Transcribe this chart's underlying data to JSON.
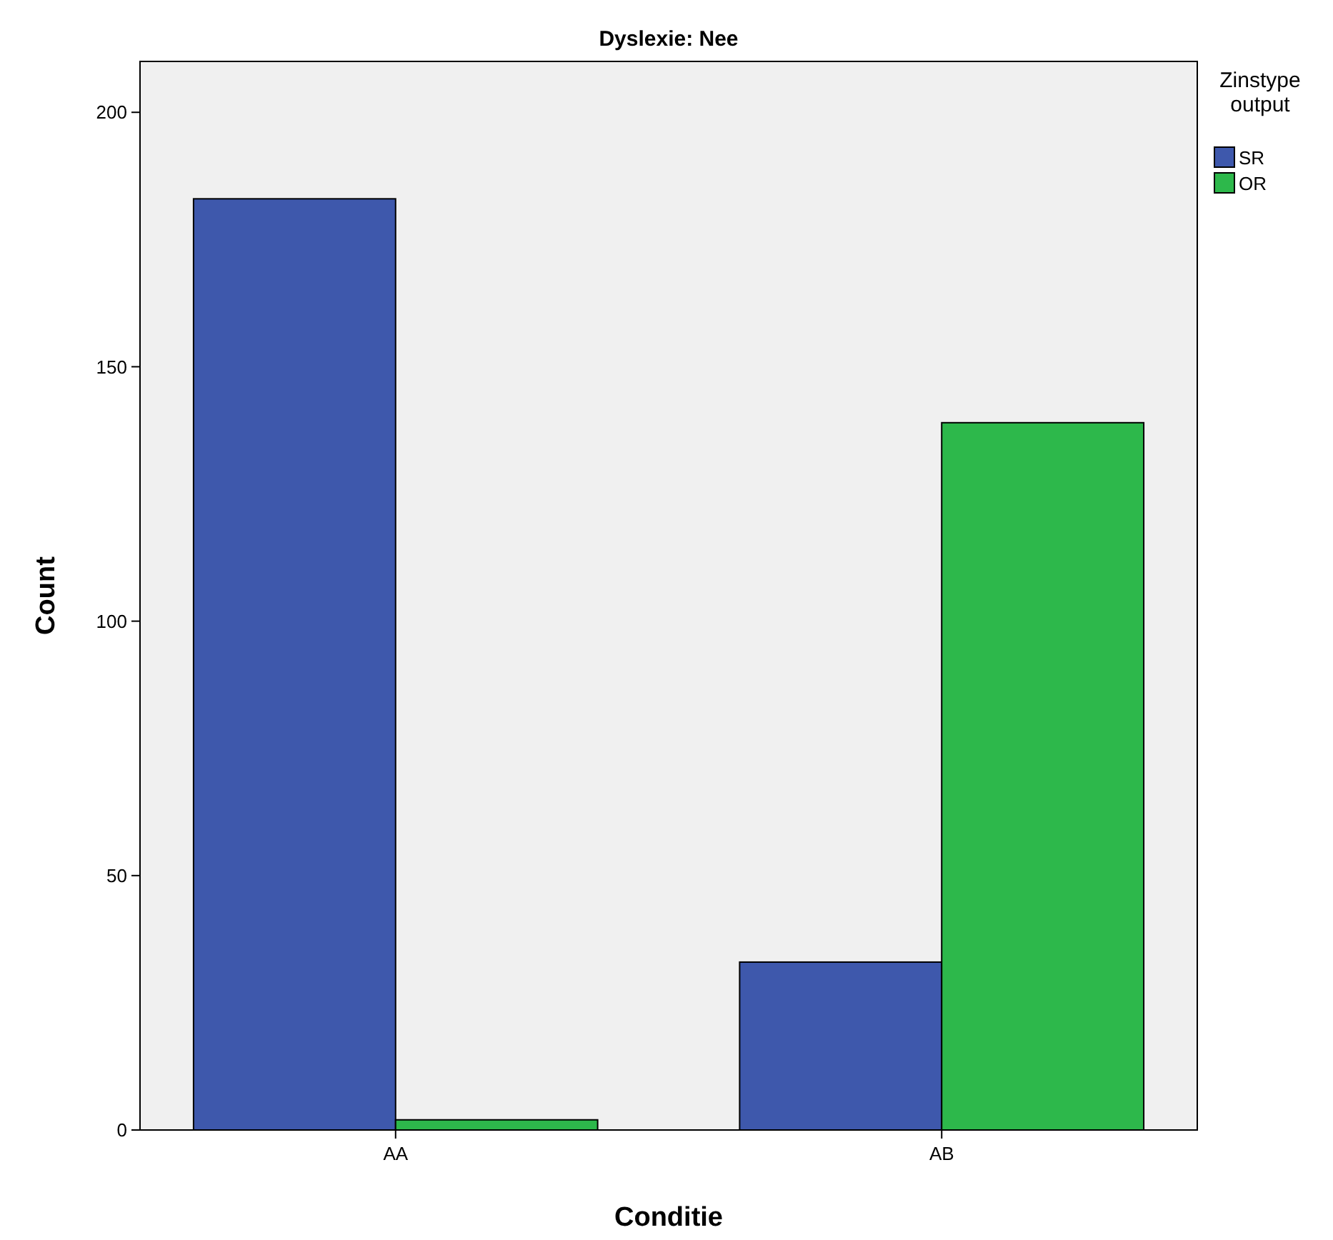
{
  "chart_data": {
    "type": "bar",
    "title": "Dyslexie: Nee",
    "xlabel": "Conditie",
    "ylabel": "Count",
    "legend_title": "Zinstype output",
    "categories": [
      "AA",
      "AB"
    ],
    "series": [
      {
        "name": "SR",
        "color": "#3e58ac",
        "values": [
          183,
          33
        ]
      },
      {
        "name": "OR",
        "color": "#2db84b",
        "values": [
          2,
          139
        ]
      }
    ],
    "ylim": [
      0,
      210
    ],
    "yticks": [
      0,
      50,
      100,
      150,
      200
    ],
    "grid": false,
    "legend": "top right"
  }
}
